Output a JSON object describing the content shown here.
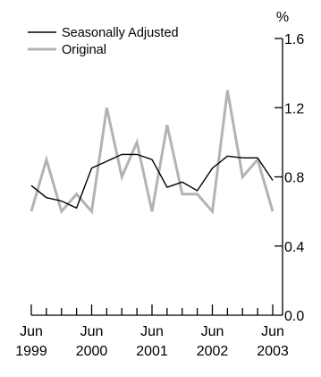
{
  "chart_data": {
    "type": "line",
    "title": "",
    "xlabel": "",
    "ylabel": "%",
    "ylim": [
      0,
      1.6
    ],
    "yticks": [
      "0.0",
      "0.4",
      "0.8",
      "1.2",
      "1.6"
    ],
    "x": [
      "Jun 1999",
      "Sep 1999",
      "Dec 1999",
      "Mar 2000",
      "Jun 2000",
      "Sep 2000",
      "Dec 2000",
      "Mar 2001",
      "Jun 2001",
      "Sep 2001",
      "Dec 2001",
      "Mar 2002",
      "Jun 2002",
      "Sep 2002",
      "Dec 2002",
      "Mar 2003",
      "Jun 2003"
    ],
    "xtick_labels": [
      {
        "month": "Jun",
        "year": "1999",
        "index": 0
      },
      {
        "month": "Jun",
        "year": "2000",
        "index": 4
      },
      {
        "month": "Jun",
        "year": "2001",
        "index": 8
      },
      {
        "month": "Jun",
        "year": "2002",
        "index": 12
      },
      {
        "month": "Jun",
        "year": "2003",
        "index": 16
      }
    ],
    "series": [
      {
        "name": "Seasonally Adjusted",
        "color": "#000000",
        "values": [
          0.75,
          0.68,
          0.66,
          0.62,
          0.85,
          0.89,
          0.93,
          0.93,
          0.9,
          0.74,
          0.77,
          0.72,
          0.85,
          0.92,
          0.91,
          0.91,
          0.78
        ]
      },
      {
        "name": "Original",
        "color": "#b3b3b3",
        "values": [
          0.6,
          0.9,
          0.6,
          0.7,
          0.6,
          1.2,
          0.8,
          1.0,
          0.6,
          1.1,
          0.7,
          0.7,
          0.6,
          1.3,
          0.8,
          0.9,
          0.6
        ]
      }
    ],
    "legend_position": "top-left",
    "grid": false
  }
}
